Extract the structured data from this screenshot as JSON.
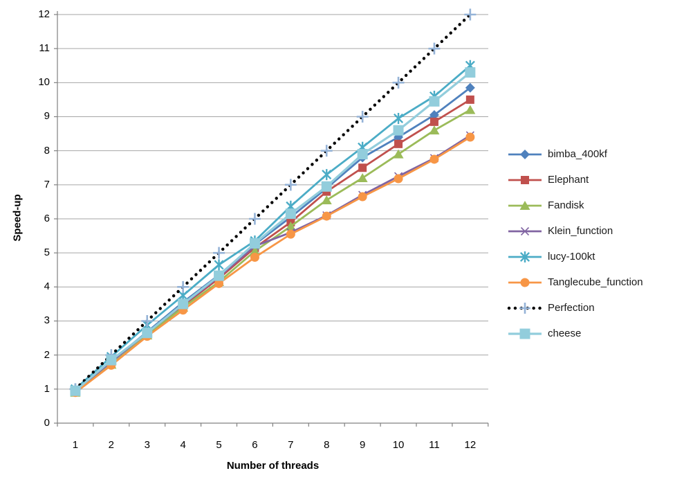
{
  "chart_data": {
    "type": "line",
    "title": "",
    "xlabel": "Number of threads",
    "ylabel": "Speed-up",
    "x": [
      1,
      2,
      3,
      4,
      5,
      6,
      7,
      8,
      9,
      10,
      11,
      12
    ],
    "x_ticks": [
      "1",
      "2",
      "3",
      "4",
      "5",
      "6",
      "7",
      "8",
      "9",
      "10",
      "11",
      "12"
    ],
    "y_ticks": [
      "0",
      "1",
      "2",
      "3",
      "4",
      "5",
      "6",
      "7",
      "8",
      "9",
      "10",
      "11",
      "12"
    ],
    "ylim": [
      0,
      12
    ],
    "grid": true,
    "legend_position": "right",
    "series": [
      {
        "name": "bimba_400kf",
        "color": "#4F81BD",
        "marker": "diamond",
        "line_style": "solid",
        "values": [
          0.95,
          1.82,
          2.68,
          3.55,
          4.35,
          5.25,
          6.05,
          6.9,
          7.8,
          8.4,
          9.05,
          9.85
        ]
      },
      {
        "name": "Elephant",
        "color": "#C0504D",
        "marker": "square",
        "line_style": "solid",
        "values": [
          0.95,
          1.8,
          2.65,
          3.45,
          4.25,
          5.15,
          5.9,
          6.8,
          7.5,
          8.2,
          8.85,
          9.5
        ]
      },
      {
        "name": "Fandisk",
        "color": "#9BBB59",
        "marker": "triangle",
        "line_style": "solid",
        "values": [
          0.9,
          1.72,
          2.58,
          3.4,
          4.15,
          5.05,
          5.78,
          6.55,
          7.2,
          7.9,
          8.6,
          9.2
        ]
      },
      {
        "name": "Klein_function",
        "color": "#8064A2",
        "marker": "x",
        "line_style": "solid",
        "values": [
          0.95,
          1.8,
          2.65,
          3.48,
          4.3,
          5.2,
          5.6,
          6.1,
          6.7,
          7.25,
          7.78,
          8.45
        ]
      },
      {
        "name": "lucy-100kt",
        "color": "#4BACC6",
        "marker": "asterisk",
        "line_style": "solid",
        "values": [
          1.0,
          1.95,
          2.88,
          3.75,
          4.65,
          5.35,
          6.37,
          7.3,
          8.1,
          8.95,
          9.6,
          10.5
        ]
      },
      {
        "name": "Tanglecube_function",
        "color": "#F79646",
        "marker": "circle",
        "line_style": "solid",
        "values": [
          0.9,
          1.7,
          2.55,
          3.32,
          4.1,
          4.87,
          5.55,
          6.08,
          6.65,
          7.18,
          7.75,
          8.4
        ]
      },
      {
        "name": "Perfection",
        "color": "#000000",
        "marker": "plus",
        "marker_color": "#95B3D7",
        "line_style": "dotted",
        "values": [
          1,
          2,
          3,
          4,
          5,
          6,
          7,
          8,
          9,
          10,
          11,
          12
        ]
      },
      {
        "name": "cheese",
        "color": "#92CDDC",
        "marker": "big-square",
        "line_style": "solid",
        "values": [
          0.95,
          1.85,
          2.65,
          3.5,
          4.33,
          5.28,
          6.15,
          6.95,
          7.9,
          8.6,
          9.45,
          10.3
        ]
      }
    ]
  },
  "style_colors": {
    "gridline": "#A6A6A6",
    "axis_line": "#808080",
    "tick_text": "#000000"
  }
}
